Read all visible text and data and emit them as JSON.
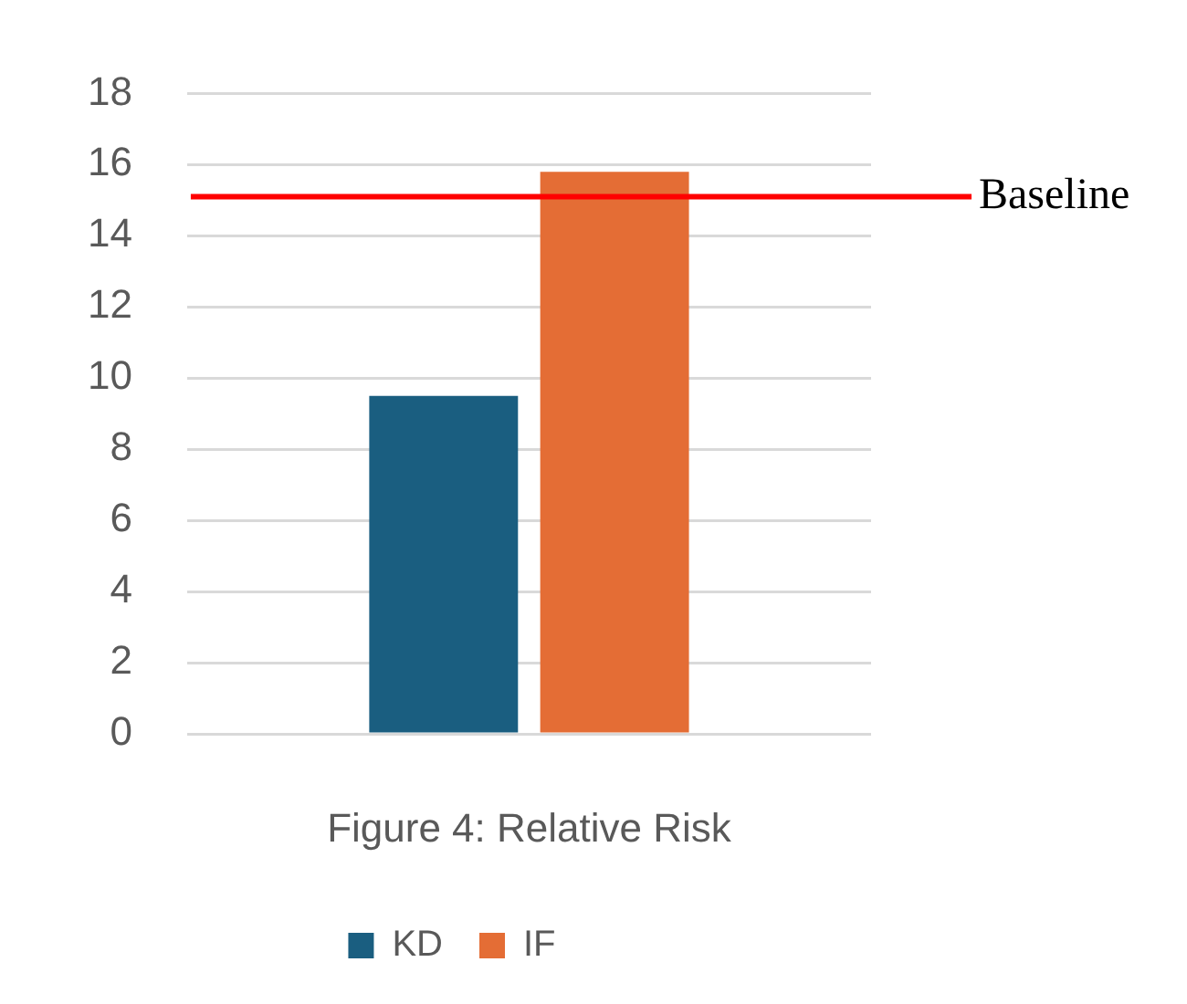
{
  "chart_data": {
    "type": "bar",
    "xlabel": "Figure 4: Relative Risk",
    "categories": [
      null
    ],
    "series": [
      {
        "name": "KD",
        "color": "#1a5e80",
        "values": [
          9.5
        ]
      },
      {
        "name": "IF",
        "color": "#e46d35",
        "values": [
          15.8
        ]
      }
    ],
    "ylim": [
      0,
      18
    ],
    "yticks": [
      0,
      2,
      4,
      6,
      8,
      10,
      12,
      14,
      16,
      18
    ],
    "grid": "y",
    "legend": "bottom",
    "ref_lines": [
      {
        "axis": "y",
        "value": 15.1,
        "label": "Baseline",
        "color": "#ff0000"
      }
    ]
  }
}
